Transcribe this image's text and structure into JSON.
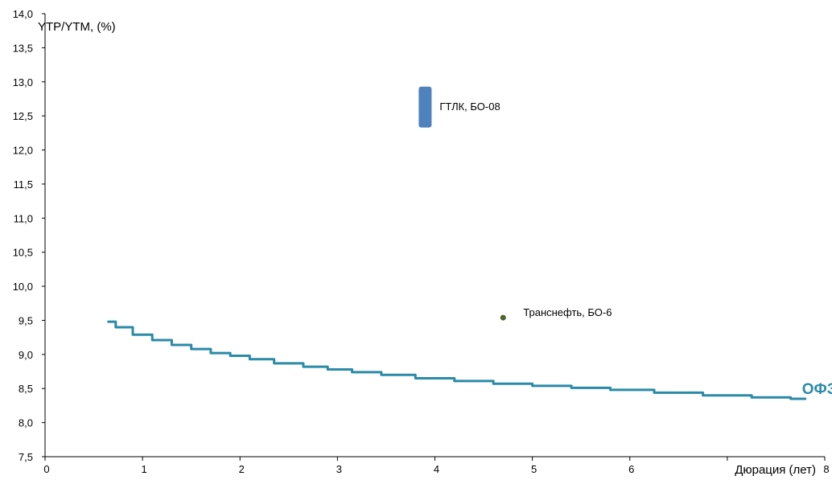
{
  "chart_data": {
    "type": "line",
    "ylabel": "YTP/YTM, (%)",
    "xlabel": "Дюрация (лет)",
    "xlim": [
      0,
      8
    ],
    "ylim": [
      7.5,
      14.0
    ],
    "x_ticks": [
      0,
      1,
      2,
      3,
      4,
      5,
      6,
      7,
      8
    ],
    "x_tick_labels": [
      "0",
      "1",
      "2",
      "3",
      "4",
      "5",
      "6",
      "",
      "8"
    ],
    "y_ticks": [
      7.5,
      8.0,
      8.5,
      9.0,
      9.5,
      10.0,
      10.5,
      11.0,
      11.5,
      12.0,
      12.5,
      13.0,
      13.5,
      14.0
    ],
    "y_tick_labels": [
      "7,5",
      "8,0",
      "8,5",
      "9,0",
      "9,5",
      "10,0",
      "10,5",
      "11,0",
      "11,5",
      "12,0",
      "12,5",
      "13,0",
      "13,5",
      "14,0"
    ],
    "grid": false,
    "colors": {
      "curve": "#2a8aa8",
      "range_bar": "#4f81bd",
      "point": "#4f6228"
    },
    "series": [
      {
        "name": "ОФЗ",
        "kind": "line",
        "x": [
          0.65,
          0.8,
          1.0,
          1.2,
          1.4,
          1.6,
          1.8,
          2.0,
          2.2,
          2.5,
          2.8,
          3.0,
          3.3,
          3.6,
          4.0,
          4.4,
          4.8,
          5.2,
          5.6,
          6.0,
          6.5,
          7.0,
          7.5,
          7.8
        ],
        "y": [
          9.48,
          9.4,
          9.29,
          9.21,
          9.14,
          9.08,
          9.02,
          8.98,
          8.93,
          8.87,
          8.82,
          8.78,
          8.74,
          8.7,
          8.65,
          8.61,
          8.57,
          8.54,
          8.51,
          8.48,
          8.44,
          8.4,
          8.37,
          8.35
        ]
      },
      {
        "name": "ГТЛК, БО-08",
        "kind": "range",
        "x": 3.9,
        "y_low": 12.33,
        "y_high": 12.93
      },
      {
        "name": "Транснефть, БО-6",
        "kind": "point",
        "x": 4.7,
        "y": 9.54
      }
    ]
  }
}
